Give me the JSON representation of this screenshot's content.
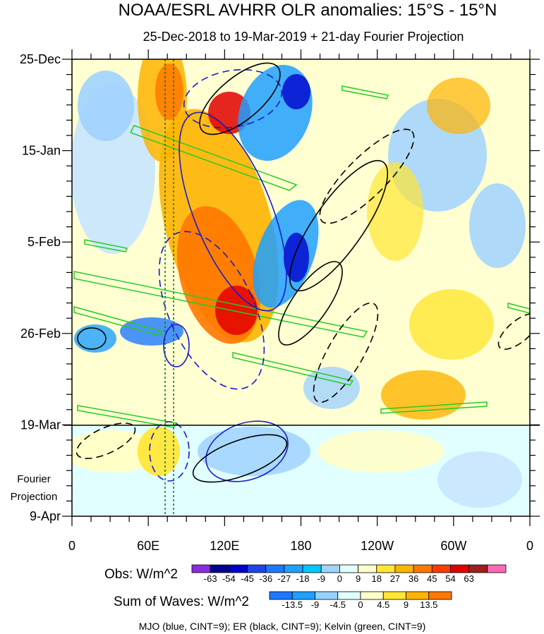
{
  "chart_data": {
    "type": "heatmap",
    "title": "NOAA/ESRL AVHRR OLR anomalies: 15°S - 15°N",
    "subtitle": "25-Dec-2018 to 19-Mar-2019 + 21-day Fourier Projection",
    "x_ticks": [
      "0",
      "60E",
      "120E",
      "180",
      "120W",
      "60W",
      "0"
    ],
    "y_ticks": [
      "25-Dec",
      "15-Jan",
      "5-Feb",
      "26-Feb",
      "19-Mar",
      "9-Apr"
    ],
    "projection_label": [
      "Fourier",
      "Projection"
    ],
    "reference_lines_longitude": [
      "73E",
      "80E"
    ],
    "obs_colorbar": {
      "label": "Obs: W/m^2",
      "levels": [
        "-63",
        "-54",
        "-45",
        "-36",
        "-27",
        "-18",
        "-9",
        "0",
        "9",
        "18",
        "27",
        "36",
        "45",
        "54",
        "63"
      ],
      "colors": [
        "#8a2be2",
        "#000090",
        "#0000cd",
        "#1e46e6",
        "#1e78ff",
        "#1ea0ff",
        "#00c8ff",
        "#a0d2ff",
        "#e1ffff",
        "#ffffc8",
        "#ffe632",
        "#ffb400",
        "#ff7800",
        "#ff3c00",
        "#e10000",
        "#a01e1e",
        "#ff69b4"
      ]
    },
    "waves_colorbar": {
      "label": "Sum of Waves: W/m^2",
      "levels": [
        "-13.5",
        "-9",
        "-4.5",
        "0",
        "4.5",
        "9",
        "13.5"
      ],
      "colors": [
        "#1e78ff",
        "#1ea0ff",
        "#96d2ff",
        "#e1ffff",
        "#ffffc8",
        "#ffe632",
        "#ffb400",
        "#ff7800"
      ]
    },
    "footer": "MJO (blue, CINT=9); ER (black, CINT=9); Kelvin (green, CINT=9)",
    "contour_colors": {
      "mjo": "#1a1acc",
      "er": "#000000",
      "kelvin": "#22cc22",
      "reference": "#1a6e1a"
    }
  }
}
